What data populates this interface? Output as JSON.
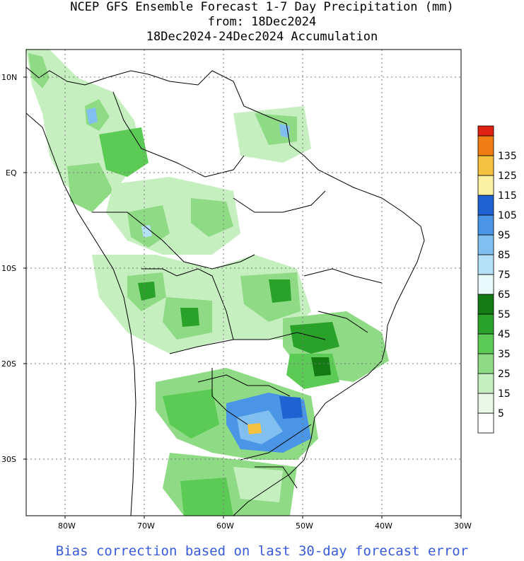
{
  "header": {
    "title_line1": "NCEP GFS Ensemble Forecast 1-7 Day Precipitation (mm)",
    "title_line2": "from: 18Dec2024",
    "title_line3": "18Dec2024-24Dec2024 Accumulation"
  },
  "map": {
    "lat_labels": [
      "10N",
      "EQ",
      "10S",
      "20S",
      "30S"
    ],
    "lon_labels": [
      "80W",
      "70W",
      "60W",
      "50W",
      "40W",
      "30W"
    ],
    "grid_lines": "dotted"
  },
  "legend": {
    "entries": [
      {
        "label": "",
        "color": "#ffffff"
      },
      {
        "label": "5",
        "color": "#e9f8e6"
      },
      {
        "label": "15",
        "color": "#c6efc0"
      },
      {
        "label": "25",
        "color": "#8fdb85"
      },
      {
        "label": "35",
        "color": "#5ccb55"
      },
      {
        "label": "45",
        "color": "#2aa22a"
      },
      {
        "label": "55",
        "color": "#147a14"
      },
      {
        "label": "65",
        "color": "#e8fbfb"
      },
      {
        "label": "75",
        "color": "#b4e0f8"
      },
      {
        "label": "85",
        "color": "#80bff0"
      },
      {
        "label": "95",
        "color": "#4a95e6"
      },
      {
        "label": "105",
        "color": "#1f62d2"
      },
      {
        "label": "115",
        "color": "#fbf0a0"
      },
      {
        "label": "125",
        "color": "#f5c240"
      },
      {
        "label": "135",
        "color": "#f07c14"
      },
      {
        "label": "",
        "color": "#e02010"
      }
    ]
  },
  "footer": {
    "note": "Bias correction based on last 30-day forecast error"
  }
}
